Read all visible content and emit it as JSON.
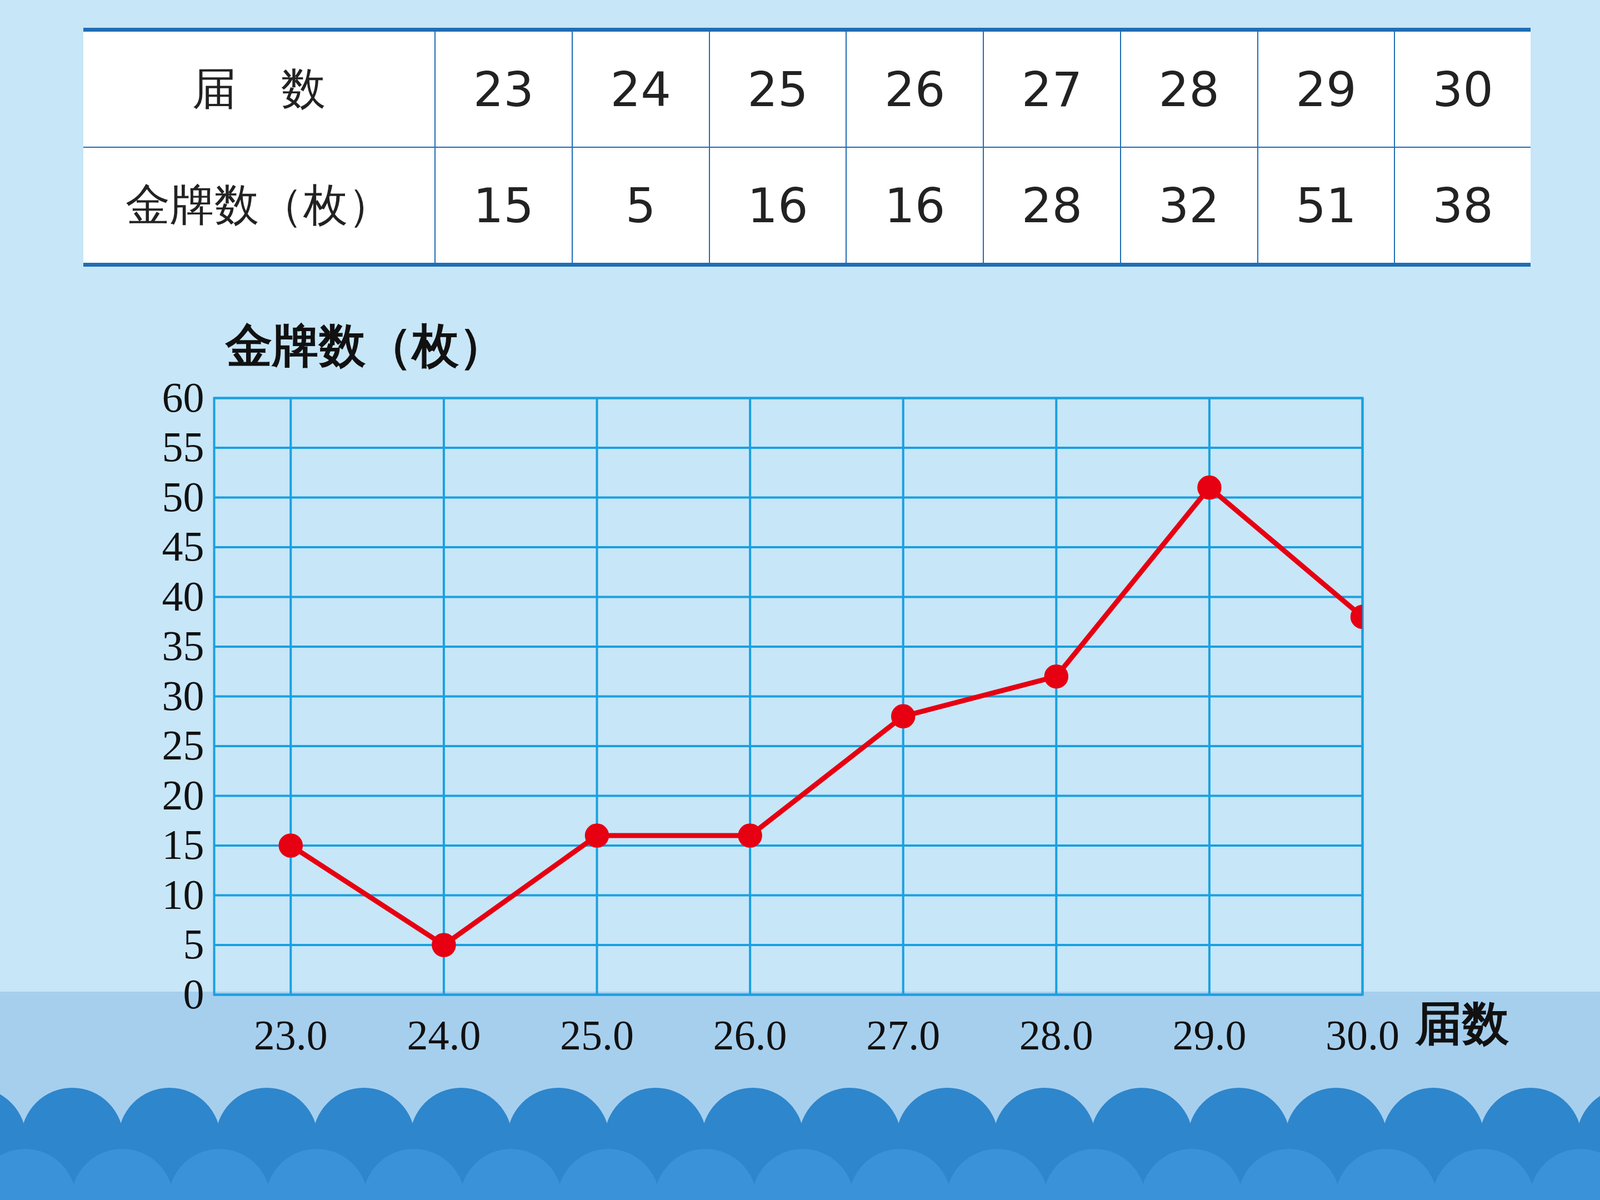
{
  "table": {
    "rows": [
      [
        "届　数",
        "23",
        "24",
        "25",
        "26",
        "27",
        "28",
        "29",
        "30"
      ],
      [
        "金牌数（枚）",
        "15",
        "5",
        "16",
        "16",
        "28",
        "32",
        "51",
        "38"
      ]
    ]
  },
  "chart_data": {
    "type": "line",
    "x": [
      23,
      24,
      25,
      26,
      27,
      28,
      29,
      30
    ],
    "values": [
      15,
      5,
      16,
      16,
      28,
      32,
      51,
      38
    ],
    "color": "#e60012",
    "marker": "circle",
    "xlabel": "届数",
    "ylabel": "金牌数（枚）",
    "xlim": [
      22.5,
      30
    ],
    "xticks": [
      23,
      24,
      25,
      26,
      27,
      28,
      29,
      30
    ],
    "ylim": [
      0,
      60
    ],
    "yticks": [
      0,
      5,
      10,
      15,
      20,
      25,
      30,
      35,
      40,
      45,
      50,
      55,
      60
    ],
    "grid": true
  }
}
